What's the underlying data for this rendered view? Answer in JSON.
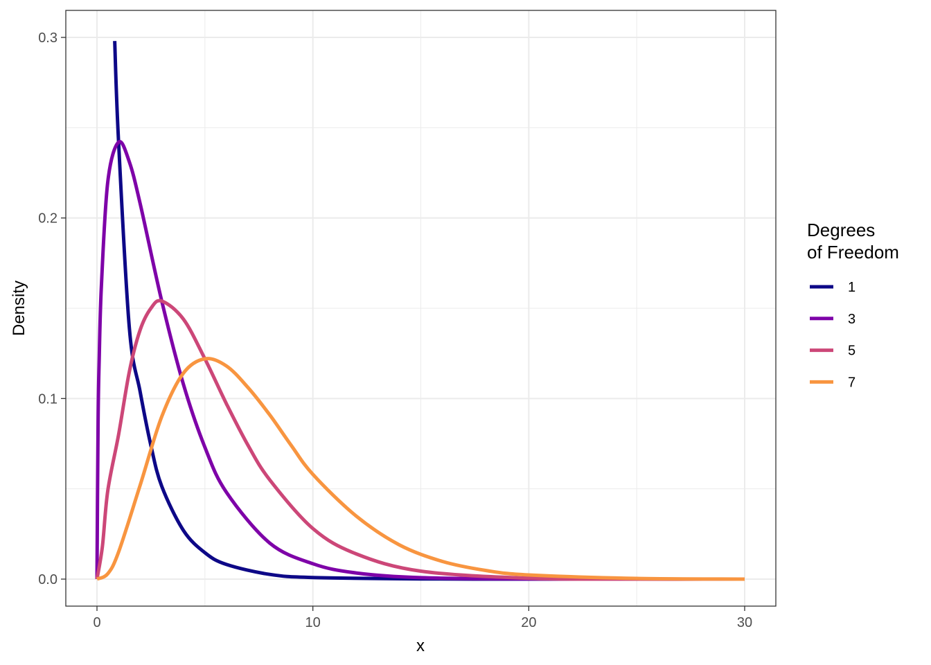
{
  "chart_data": {
    "type": "line",
    "title": "",
    "xlabel": "x",
    "ylabel": "Density",
    "xlim": [
      0,
      30
    ],
    "ylim": [
      0,
      0.3
    ],
    "x_ticks": [
      0,
      10,
      20,
      30
    ],
    "x_tick_labels": [
      "0",
      "10",
      "20",
      "30"
    ],
    "y_ticks": [
      0,
      0.1,
      0.2,
      0.3
    ],
    "y_tick_labels": [
      "0.0",
      "0.1",
      "0.2",
      "0.3"
    ],
    "grid": true,
    "legend": {
      "title_lines": [
        "Degrees",
        "of Freedom"
      ],
      "placement": "right"
    },
    "series": [
      {
        "name": "1",
        "color": "#0d0887",
        "x": [
          0.82,
          1,
          1.5,
          2,
          2.5,
          3,
          4,
          5,
          6,
          8,
          10,
          15,
          20,
          25,
          30
        ],
        "y": [
          0.298,
          0.242,
          0.1388,
          0.1038,
          0.0739,
          0.0514,
          0.027,
          0.0146,
          0.0081,
          0.0026,
          0.0009,
          0.0001,
          0.0,
          0.0,
          0.0
        ]
      },
      {
        "name": "3",
        "color": "#7e03a8",
        "x": [
          0,
          0.05,
          0.1,
          0.2,
          0.5,
          1,
          1.5,
          2,
          3,
          4,
          5,
          6,
          8,
          10,
          12,
          15,
          20,
          25,
          30
        ],
        "y": [
          0,
          0.087,
          0.12,
          0.161,
          0.22,
          0.242,
          0.231,
          0.208,
          0.154,
          0.108,
          0.073,
          0.048,
          0.02,
          0.0085,
          0.0034,
          0.0008,
          0.0001,
          0.0,
          0.0
        ]
      },
      {
        "name": "5",
        "color": "#cc4778",
        "x": [
          0,
          0.25,
          0.5,
          1,
          1.5,
          2,
          2.5,
          3,
          4,
          5,
          6,
          7,
          8,
          10,
          12,
          15,
          20,
          25,
          30
        ],
        "y": [
          0,
          0.018,
          0.049,
          0.08,
          0.115,
          0.138,
          0.15,
          0.154,
          0.144,
          0.122,
          0.097,
          0.074,
          0.055,
          0.028,
          0.014,
          0.0044,
          0.0005,
          0.0,
          0.0
        ]
      },
      {
        "name": "7",
        "color": "#f89540",
        "x": [
          0,
          0.5,
          1,
          2,
          3,
          4,
          5,
          6,
          7,
          8,
          9,
          10,
          12,
          14,
          16,
          18,
          20,
          25,
          30
        ],
        "y": [
          0,
          0.003,
          0.015,
          0.052,
          0.09,
          0.114,
          0.122,
          0.118,
          0.106,
          0.091,
          0.074,
          0.058,
          0.035,
          0.019,
          0.0098,
          0.0048,
          0.0023,
          0.0004,
          0.0
        ]
      }
    ]
  }
}
